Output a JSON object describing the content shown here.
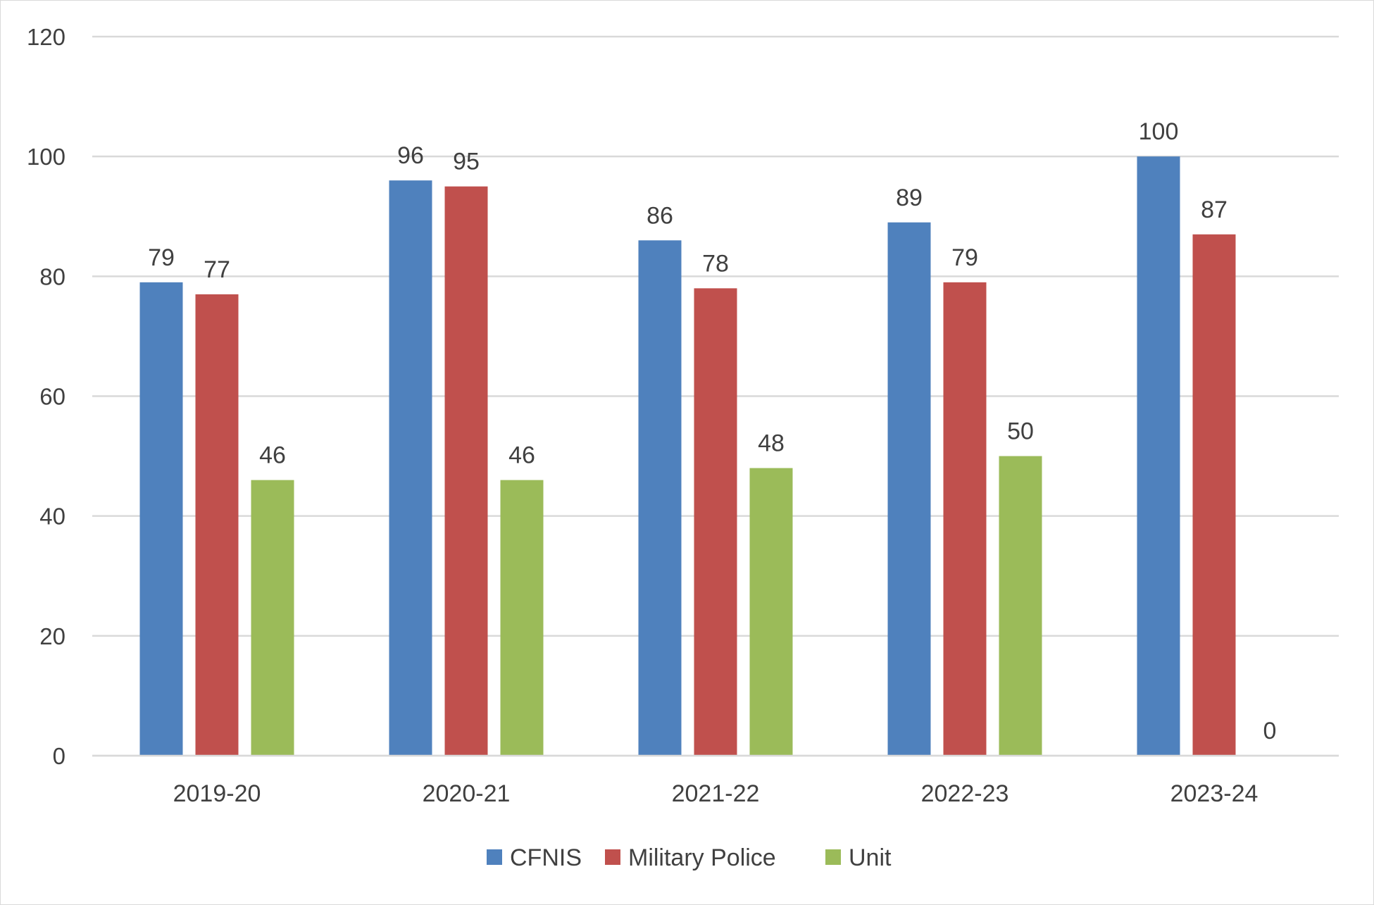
{
  "chart_data": {
    "type": "bar",
    "title": "",
    "xlabel": "",
    "ylabel": "",
    "ylim": [
      0,
      120
    ],
    "yticks": [
      0,
      20,
      40,
      60,
      80,
      100,
      120
    ],
    "grid": true,
    "legend_position": "bottom",
    "categories": [
      "2019-20",
      "2020-21",
      "2021-22",
      "2022-23",
      "2023-24"
    ],
    "series": [
      {
        "name": "CFNIS",
        "color": "#4f81bd",
        "values": [
          79,
          96,
          86,
          89,
          100
        ]
      },
      {
        "name": "Military Police",
        "color": "#c0504d",
        "values": [
          77,
          95,
          78,
          79,
          87
        ]
      },
      {
        "name": "Unit",
        "color": "#9bbb59",
        "values": [
          46,
          46,
          48,
          50,
          0
        ]
      }
    ]
  }
}
